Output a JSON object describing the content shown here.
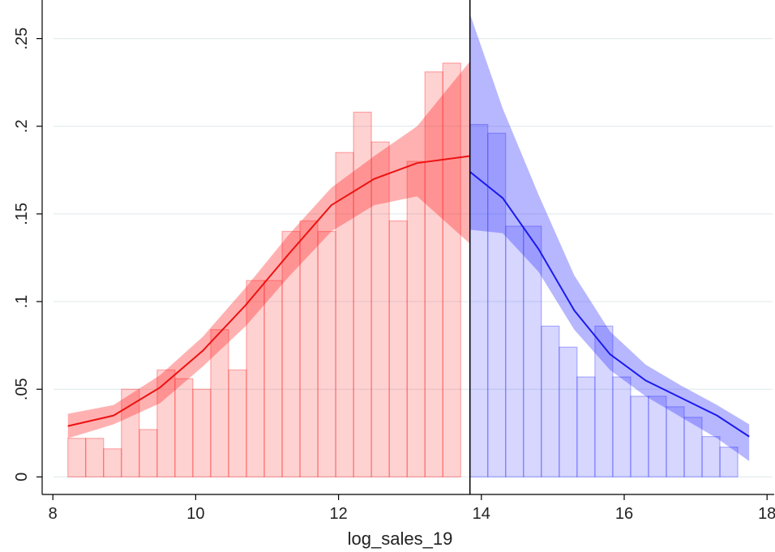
{
  "chart_data": {
    "type": "bar",
    "xlabel": "log_sales_19",
    "ylabel": "",
    "xlim": [
      7.85,
      18.1
    ],
    "ylim": [
      -0.01,
      0.272
    ],
    "x_ticks": [
      8,
      10,
      12,
      14,
      16,
      18
    ],
    "y_ticks": [
      0,
      0.05,
      0.1,
      0.15,
      0.2,
      0.25
    ],
    "y_tick_labels": [
      "0",
      ".05",
      ".1",
      ".15",
      ".2",
      ".25"
    ],
    "grid": true,
    "cutoff": 13.84,
    "bin_width": 0.25,
    "left_bins": {
      "color": "#ff2020",
      "x": [
        8.21,
        8.46,
        8.71,
        8.96,
        9.21,
        9.46,
        9.71,
        9.96,
        10.21,
        10.46,
        10.71,
        10.96,
        11.21,
        11.46,
        11.71,
        11.96,
        12.21,
        12.46,
        12.71,
        12.96,
        13.21,
        13.46
      ],
      "values": [
        0.022,
        0.022,
        0.016,
        0.05,
        0.027,
        0.061,
        0.056,
        0.05,
        0.084,
        0.061,
        0.112,
        0.112,
        0.14,
        0.146,
        0.14,
        0.185,
        0.208,
        0.191,
        0.146,
        0.18,
        0.231,
        0.236
      ]
    },
    "right_bins": {
      "color": "#3030ff",
      "x": [
        13.84,
        14.09,
        14.34,
        14.59,
        14.84,
        15.09,
        15.34,
        15.59,
        15.84,
        16.09,
        16.34,
        16.59,
        16.84,
        17.09,
        17.34,
        17.59
      ],
      "values": [
        0.201,
        0.196,
        0.143,
        0.143,
        0.086,
        0.074,
        0.057,
        0.086,
        0.057,
        0.046,
        0.046,
        0.04,
        0.034,
        0.023,
        0.017,
        0.0
      ]
    },
    "left_fit": {
      "x": [
        8.21,
        8.85,
        9.5,
        10.1,
        10.7,
        11.3,
        11.9,
        12.5,
        13.1,
        13.84
      ],
      "y": [
        0.029,
        0.035,
        0.051,
        0.072,
        0.098,
        0.127,
        0.155,
        0.17,
        0.179,
        0.183
      ],
      "ci_lower": [
        0.022,
        0.03,
        0.042,
        0.063,
        0.086,
        0.114,
        0.14,
        0.155,
        0.16,
        0.133
      ],
      "ci_upper": [
        0.036,
        0.041,
        0.058,
        0.08,
        0.108,
        0.138,
        0.165,
        0.183,
        0.2,
        0.237
      ]
    },
    "right_fit": {
      "x": [
        13.84,
        14.3,
        14.8,
        15.3,
        15.8,
        16.3,
        16.8,
        17.3,
        17.75
      ],
      "y": [
        0.174,
        0.159,
        0.13,
        0.095,
        0.07,
        0.055,
        0.045,
        0.035,
        0.023
      ],
      "ci_lower": [
        0.141,
        0.139,
        0.117,
        0.084,
        0.061,
        0.046,
        0.034,
        0.022,
        0.009
      ],
      "ci_upper": [
        0.264,
        0.21,
        0.161,
        0.115,
        0.083,
        0.064,
        0.052,
        0.041,
        0.03
      ]
    }
  }
}
